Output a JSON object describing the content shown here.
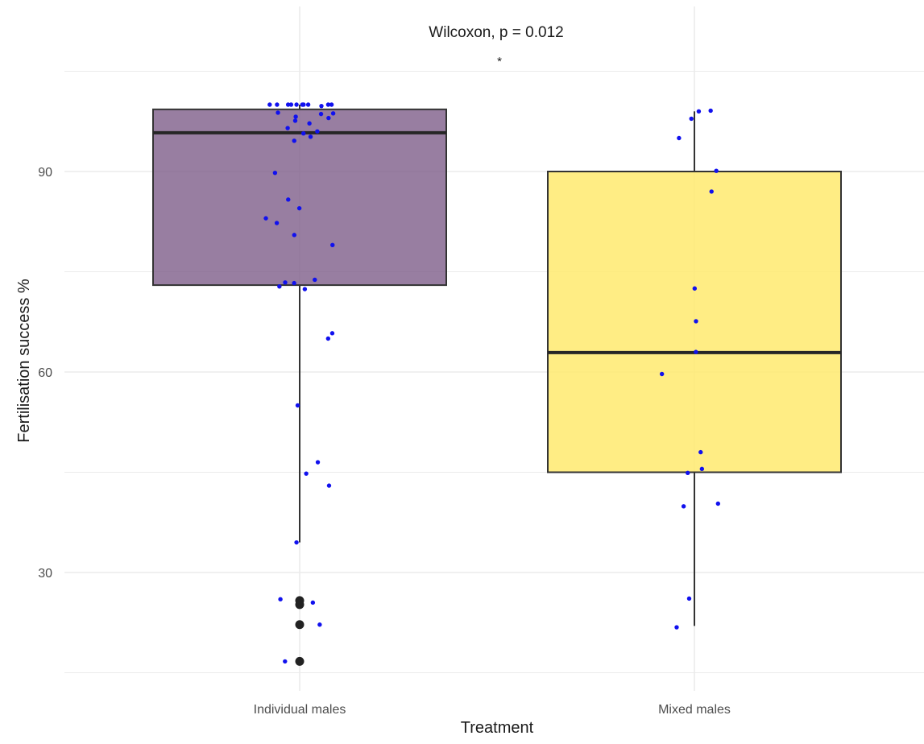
{
  "chart_data": {
    "type": "box",
    "xlabel": "Treatment",
    "ylabel": "Fertilisation success %",
    "ylim": [
      13.5,
      108.5
    ],
    "yticks": [
      30,
      60,
      90
    ],
    "grid": true,
    "annotation": {
      "test": "Wilcoxon, p = 0.012",
      "significance": "*"
    },
    "categories": [
      "Individual males",
      "Mixed males"
    ],
    "colors": {
      "Individual males": "#7b5a86",
      "Mixed males": "#ffea6e",
      "jitter_points": "#1111ee",
      "outliers": "#222222",
      "box_outline": "#333333",
      "grid": "#ebebeb"
    },
    "boxes": [
      {
        "category": "Individual males",
        "q1": 73.0,
        "median": 95.8,
        "q3": 99.3,
        "whisker_low": 34.5,
        "whisker_high": 100.0,
        "outliers": [
          25.8,
          25.2,
          22.2,
          16.7
        ]
      },
      {
        "category": "Mixed males",
        "q1": 45.0,
        "median": 62.9,
        "q3": 90.0,
        "whisker_low": 22.0,
        "whisker_high": 99.0
      }
    ],
    "points": [
      {
        "category": "Individual males",
        "values": [
          100.0,
          100.0,
          100.0,
          100.0,
          100.0,
          100.0,
          100.0,
          100.0,
          100.0,
          100.0,
          99.8,
          98.8,
          98.7,
          98.6,
          98.2,
          98.0,
          97.6,
          97.2,
          96.5,
          96.0,
          95.7,
          95.2,
          94.6,
          89.8,
          85.8,
          84.5,
          83.0,
          82.3,
          80.5,
          79.0,
          73.8,
          73.4,
          73.3,
          72.8,
          72.4,
          65.8,
          65.0,
          55.0,
          46.5,
          44.8,
          43.0,
          34.5,
          26.0,
          25.5,
          22.2,
          16.7
        ]
      },
      {
        "category": "Mixed males",
        "values": [
          99.1,
          99.0,
          97.9,
          95.0,
          90.1,
          87.0,
          72.5,
          67.6,
          63.0,
          59.7,
          48.0,
          45.5,
          44.9,
          40.3,
          39.9,
          26.1,
          21.8
        ]
      }
    ]
  }
}
